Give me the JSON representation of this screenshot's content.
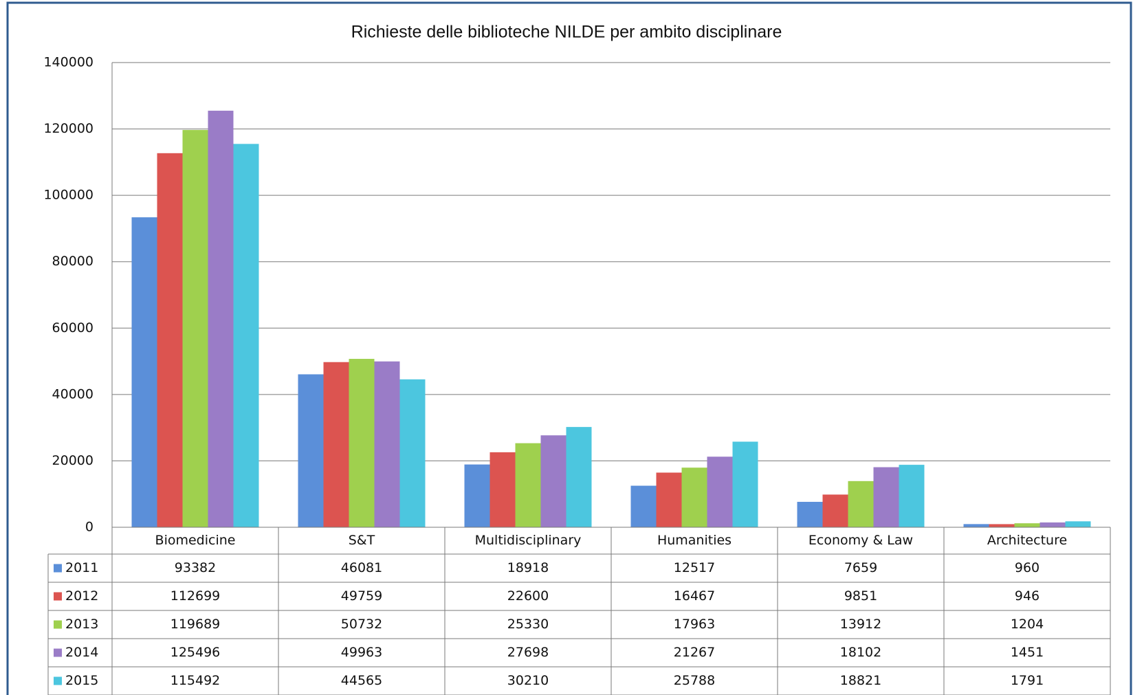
{
  "chart_data": {
    "type": "bar",
    "title": "Richieste delle biblioteche NILDE per ambito disciplinare",
    "categories": [
      "Biomedicine",
      "S&T",
      "Multidisciplinary",
      "Humanities",
      "Economy & Law",
      "Architecture"
    ],
    "series": [
      {
        "name": "2011",
        "color": "#5b8fd9",
        "values": [
          93382,
          46081,
          18918,
          12517,
          7659,
          960
        ]
      },
      {
        "name": "2012",
        "color": "#dc5450",
        "values": [
          112699,
          49759,
          22600,
          16467,
          9851,
          946
        ]
      },
      {
        "name": "2013",
        "color": "#9fd04e",
        "values": [
          119689,
          50732,
          25330,
          17963,
          13912,
          1204
        ]
      },
      {
        "name": "2014",
        "color": "#9a7cc7",
        "values": [
          125496,
          49963,
          27698,
          21267,
          18102,
          1451
        ]
      },
      {
        "name": "2015",
        "color": "#4cc6df",
        "values": [
          115492,
          44565,
          30210,
          25788,
          18821,
          1791
        ]
      }
    ],
    "ylim": [
      0,
      140000
    ],
    "yticks": [
      0,
      20000,
      40000,
      60000,
      80000,
      100000,
      120000,
      140000
    ],
    "grid": true
  }
}
